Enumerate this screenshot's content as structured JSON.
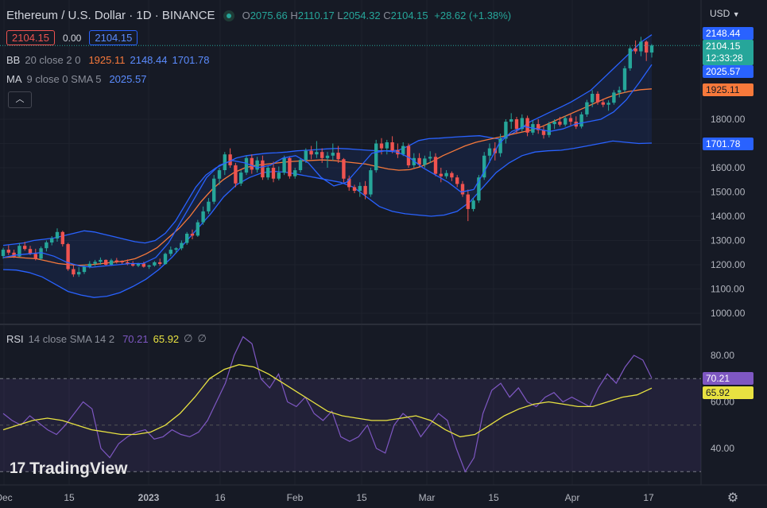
{
  "header": {
    "symbol_title": "Ethereum / U.S. Dollar · 1D · BINANCE",
    "o_label": "O",
    "o_value": "2075.66",
    "h_label": "H",
    "h_value": "2110.17",
    "l_label": "L",
    "l_value": "2054.32",
    "c_label": "C",
    "c_value": "2104.15",
    "change": "+28.62 (+1.38%)",
    "bid": "2104.15",
    "spread": "0.00",
    "ask": "2104.15",
    "currency": "USD"
  },
  "indicators": {
    "bb": {
      "name": "BB",
      "params": "20 close 2 0",
      "basis": "1925.11",
      "upper": "2148.44",
      "lower": "1701.78"
    },
    "ma": {
      "name": "MA",
      "params": "9 close 0 SMA 5",
      "value": "2025.57"
    },
    "rsi": {
      "name": "RSI",
      "params": "14 close SMA 14 2",
      "value": "70.21",
      "sma": "65.92",
      "na1": "∅",
      "na2": "∅"
    }
  },
  "price_axis": {
    "labels": [
      "1000.00",
      "1100.00",
      "1200.00",
      "1300.00",
      "1400.00",
      "1500.00",
      "1600.00",
      "1700.00",
      "1800.00"
    ],
    "badges": {
      "upper": "2148.44",
      "last": "2104.15",
      "countdown": "12:33:28",
      "ma": "2025.57",
      "basis": "1925.11",
      "lower": "1701.78"
    }
  },
  "rsi_axis": {
    "labels": [
      "40.00",
      "60.00",
      "80.00"
    ],
    "badge_rsi": "70.21",
    "badge_sma": "65.92"
  },
  "time_axis": {
    "labels": [
      "Dec",
      "15",
      "2023",
      "16",
      "Feb",
      "15",
      "Mar",
      "15",
      "Apr",
      "17"
    ]
  },
  "brand": {
    "name": "TradingView",
    "mark": "17"
  },
  "colors": {
    "bg": "#161a25",
    "up": "#26a69a",
    "down": "#ef5350",
    "bb": "#2962ff",
    "basis": "#f7793b",
    "rsi": "#7e57c2",
    "rsi_sma": "#e8e241"
  },
  "chart_data": {
    "type": "candlestick",
    "interval": "1D",
    "x_start": "2022-12-07",
    "y_range": [
      960,
      2200
    ],
    "rsi_range": [
      25,
      95
    ],
    "rsi_levels": [
      70,
      50,
      30
    ],
    "candles": [
      [
        1236,
        1270,
        1225,
        1262
      ],
      [
        1262,
        1280,
        1240,
        1250
      ],
      [
        1250,
        1262,
        1228,
        1234
      ],
      [
        1234,
        1290,
        1232,
        1278
      ],
      [
        1278,
        1294,
        1258,
        1265
      ],
      [
        1265,
        1278,
        1240,
        1245
      ],
      [
        1245,
        1266,
        1218,
        1225
      ],
      [
        1225,
        1275,
        1220,
        1268
      ],
      [
        1268,
        1300,
        1255,
        1292
      ],
      [
        1292,
        1318,
        1280,
        1308
      ],
      [
        1308,
        1350,
        1295,
        1335
      ],
      [
        1335,
        1340,
        1275,
        1285
      ],
      [
        1285,
        1290,
        1175,
        1182
      ],
      [
        1182,
        1200,
        1150,
        1160
      ],
      [
        1160,
        1190,
        1150,
        1170
      ],
      [
        1170,
        1200,
        1162,
        1192
      ],
      [
        1192,
        1215,
        1185,
        1204
      ],
      [
        1204,
        1220,
        1195,
        1212
      ],
      [
        1212,
        1230,
        1200,
        1220
      ],
      [
        1220,
        1222,
        1195,
        1200
      ],
      [
        1200,
        1225,
        1195,
        1218
      ],
      [
        1218,
        1228,
        1205,
        1213
      ],
      [
        1213,
        1218,
        1202,
        1210
      ],
      [
        1210,
        1222,
        1198,
        1203
      ],
      [
        1203,
        1215,
        1192,
        1196
      ],
      [
        1196,
        1208,
        1190,
        1205
      ],
      [
        1205,
        1212,
        1188,
        1192
      ],
      [
        1192,
        1200,
        1183,
        1197
      ],
      [
        1197,
        1215,
        1192,
        1210
      ],
      [
        1210,
        1225,
        1195,
        1203
      ],
      [
        1203,
        1250,
        1200,
        1245
      ],
      [
        1245,
        1275,
        1235,
        1262
      ],
      [
        1262,
        1272,
        1248,
        1268
      ],
      [
        1268,
        1300,
        1260,
        1290
      ],
      [
        1290,
        1335,
        1282,
        1328
      ],
      [
        1328,
        1345,
        1305,
        1320
      ],
      [
        1320,
        1385,
        1315,
        1375
      ],
      [
        1375,
        1440,
        1365,
        1420
      ],
      [
        1420,
        1475,
        1410,
        1460
      ],
      [
        1460,
        1570,
        1450,
        1555
      ],
      [
        1555,
        1600,
        1530,
        1590
      ],
      [
        1590,
        1665,
        1570,
        1655
      ],
      [
        1655,
        1680,
        1600,
        1610
      ],
      [
        1610,
        1620,
        1520,
        1535
      ],
      [
        1535,
        1590,
        1525,
        1580
      ],
      [
        1580,
        1650,
        1570,
        1640
      ],
      [
        1640,
        1655,
        1575,
        1592
      ],
      [
        1592,
        1645,
        1580,
        1630
      ],
      [
        1630,
        1650,
        1550,
        1560
      ],
      [
        1560,
        1610,
        1550,
        1600
      ],
      [
        1600,
        1625,
        1540,
        1555
      ],
      [
        1555,
        1605,
        1548,
        1580
      ],
      [
        1580,
        1650,
        1570,
        1640
      ],
      [
        1640,
        1648,
        1555,
        1565
      ],
      [
        1565,
        1600,
        1555,
        1590
      ],
      [
        1590,
        1640,
        1580,
        1632
      ],
      [
        1632,
        1680,
        1620,
        1670
      ],
      [
        1670,
        1690,
        1635,
        1655
      ],
      [
        1655,
        1710,
        1640,
        1665
      ],
      [
        1665,
        1680,
        1620,
        1640
      ],
      [
        1640,
        1665,
        1600,
        1650
      ],
      [
        1650,
        1700,
        1630,
        1662
      ],
      [
        1662,
        1690,
        1620,
        1635
      ],
      [
        1635,
        1640,
        1540,
        1555
      ],
      [
        1555,
        1568,
        1505,
        1520
      ],
      [
        1520,
        1530,
        1495,
        1505
      ],
      [
        1505,
        1540,
        1480,
        1525
      ],
      [
        1525,
        1545,
        1470,
        1490
      ],
      [
        1490,
        1600,
        1480,
        1590
      ],
      [
        1590,
        1715,
        1580,
        1700
      ],
      [
        1700,
        1722,
        1655,
        1680
      ],
      [
        1680,
        1715,
        1655,
        1705
      ],
      [
        1705,
        1730,
        1660,
        1672
      ],
      [
        1672,
        1700,
        1640,
        1655
      ],
      [
        1655,
        1705,
        1648,
        1690
      ],
      [
        1690,
        1700,
        1600,
        1610
      ],
      [
        1610,
        1660,
        1600,
        1640
      ],
      [
        1640,
        1660,
        1605,
        1612
      ],
      [
        1612,
        1650,
        1600,
        1638
      ],
      [
        1638,
        1668,
        1620,
        1645
      ],
      [
        1645,
        1660,
        1565,
        1575
      ],
      [
        1575,
        1600,
        1540,
        1565
      ],
      [
        1565,
        1590,
        1555,
        1578
      ],
      [
        1578,
        1585,
        1545,
        1560
      ],
      [
        1560,
        1570,
        1520,
        1533
      ],
      [
        1533,
        1545,
        1480,
        1490
      ],
      [
        1490,
        1510,
        1380,
        1430
      ],
      [
        1430,
        1475,
        1420,
        1465
      ],
      [
        1465,
        1570,
        1455,
        1560
      ],
      [
        1560,
        1665,
        1550,
        1650
      ],
      [
        1650,
        1700,
        1620,
        1680
      ],
      [
        1680,
        1705,
        1630,
        1660
      ],
      [
        1660,
        1740,
        1645,
        1720
      ],
      [
        1720,
        1800,
        1700,
        1790
      ],
      [
        1790,
        1825,
        1760,
        1800
      ],
      [
        1800,
        1810,
        1740,
        1760
      ],
      [
        1760,
        1820,
        1750,
        1805
      ],
      [
        1805,
        1815,
        1730,
        1745
      ],
      [
        1745,
        1795,
        1735,
        1780
      ],
      [
        1780,
        1800,
        1740,
        1755
      ],
      [
        1755,
        1770,
        1720,
        1735
      ],
      [
        1735,
        1790,
        1725,
        1780
      ],
      [
        1780,
        1800,
        1760,
        1790
      ],
      [
        1790,
        1810,
        1770,
        1778
      ],
      [
        1778,
        1815,
        1770,
        1805
      ],
      [
        1805,
        1820,
        1775,
        1790
      ],
      [
        1790,
        1812,
        1760,
        1770
      ],
      [
        1770,
        1830,
        1762,
        1820
      ],
      [
        1820,
        1880,
        1810,
        1870
      ],
      [
        1870,
        1920,
        1850,
        1905
      ],
      [
        1905,
        1915,
        1860,
        1870
      ],
      [
        1870,
        1885,
        1850,
        1860
      ],
      [
        1860,
        1878,
        1835,
        1868
      ],
      [
        1868,
        1920,
        1860,
        1910
      ],
      [
        1910,
        1935,
        1890,
        1920
      ],
      [
        1920,
        2020,
        1910,
        2010
      ],
      [
        2010,
        2100,
        2000,
        2092
      ],
      [
        2092,
        2125,
        2070,
        2080
      ],
      [
        2080,
        2140,
        2060,
        2120
      ],
      [
        2120,
        2125,
        2040,
        2075
      ],
      [
        2075,
        2110.17,
        2054.32,
        2104.15
      ]
    ],
    "bb_upper": [
      1280,
      1285,
      1290,
      1300,
      1305,
      1310,
      1320,
      1330,
      1340,
      1335,
      1325,
      1315,
      1305,
      1295,
      1290,
      1300,
      1330,
      1380,
      1450,
      1520,
      1570,
      1600,
      1620,
      1640,
      1650,
      1655,
      1660,
      1662,
      1665,
      1670,
      1672,
      1675,
      1678,
      1680,
      1678,
      1675,
      1672,
      1670,
      1670,
      1672,
      1690,
      1712,
      1720,
      1722,
      1725,
      1728,
      1730,
      1732,
      1725,
      1718,
      1735,
      1760,
      1790,
      1810,
      1830,
      1850,
      1870,
      1895,
      1920,
      1960,
      2000,
      2040,
      2080,
      2120,
      2148.44
    ],
    "bb_basis": [
      1230,
      1232,
      1228,
      1225,
      1215,
      1205,
      1200,
      1198,
      1200,
      1205,
      1210,
      1215,
      1225,
      1245,
      1270,
      1310,
      1350,
      1400,
      1460,
      1510,
      1550,
      1580,
      1600,
      1610,
      1615,
      1620,
      1625,
      1628,
      1630,
      1632,
      1630,
      1625,
      1620,
      1615,
      1605,
      1595,
      1590,
      1592,
      1605,
      1625,
      1650,
      1670,
      1690,
      1705,
      1715,
      1725,
      1735,
      1745,
      1755,
      1770,
      1790,
      1810,
      1830,
      1850,
      1870,
      1890,
      1905,
      1915,
      1922,
      1925.11
    ],
    "bb_lower": [
      1180,
      1178,
      1168,
      1150,
      1120,
      1090,
      1075,
      1065,
      1070,
      1085,
      1110,
      1140,
      1180,
      1230,
      1290,
      1350,
      1410,
      1480,
      1530,
      1560,
      1580,
      1585,
      1580,
      1570,
      1560,
      1550,
      1540,
      1520,
      1480,
      1440,
      1420,
      1410,
      1405,
      1400,
      1405,
      1420,
      1460,
      1520,
      1580,
      1620,
      1650,
      1665,
      1670,
      1672,
      1680,
      1690,
      1700,
      1710,
      1705,
      1700,
      1701.78
    ],
    "ma": [
      1230,
      1240,
      1245,
      1250,
      1235,
      1210,
      1195,
      1190,
      1195,
      1200,
      1205,
      1205,
      1230,
      1290,
      1380,
      1470,
      1560,
      1610,
      1630,
      1620,
      1600,
      1610,
      1640,
      1650,
      1620,
      1560,
      1525,
      1540,
      1600,
      1660,
      1670,
      1665,
      1640,
      1600,
      1570,
      1540,
      1500,
      1510,
      1600,
      1700,
      1750,
      1770,
      1760,
      1750,
      1760,
      1780,
      1790,
      1800,
      1830,
      1880,
      1950,
      2025.57
    ],
    "rsi": [
      55,
      52,
      50,
      54,
      51,
      48,
      46,
      50,
      55,
      60,
      57,
      40,
      36,
      42,
      45,
      47,
      48,
      44,
      45,
      48,
      46,
      45,
      47,
      52,
      60,
      68,
      80,
      88,
      85,
      70,
      66,
      72,
      60,
      58,
      62,
      55,
      52,
      56,
      45,
      43,
      45,
      50,
      40,
      38,
      50,
      55,
      52,
      45,
      50,
      55,
      52,
      40,
      30,
      36,
      55,
      65,
      68,
      62,
      66,
      60,
      58,
      62,
      64,
      60,
      62,
      60,
      58,
      66,
      72,
      68,
      75,
      80,
      78,
      70.21
    ],
    "rsi_sma": [
      48,
      50,
      52,
      53,
      52,
      50,
      48,
      47,
      46,
      46,
      47,
      50,
      55,
      62,
      70,
      74,
      76,
      75,
      72,
      68,
      64,
      60,
      56,
      54,
      53,
      52,
      52,
      53,
      54,
      52,
      48,
      45,
      46,
      50,
      54,
      57,
      59,
      60,
      59,
      58,
      58,
      60,
      62,
      63,
      65.92
    ]
  }
}
